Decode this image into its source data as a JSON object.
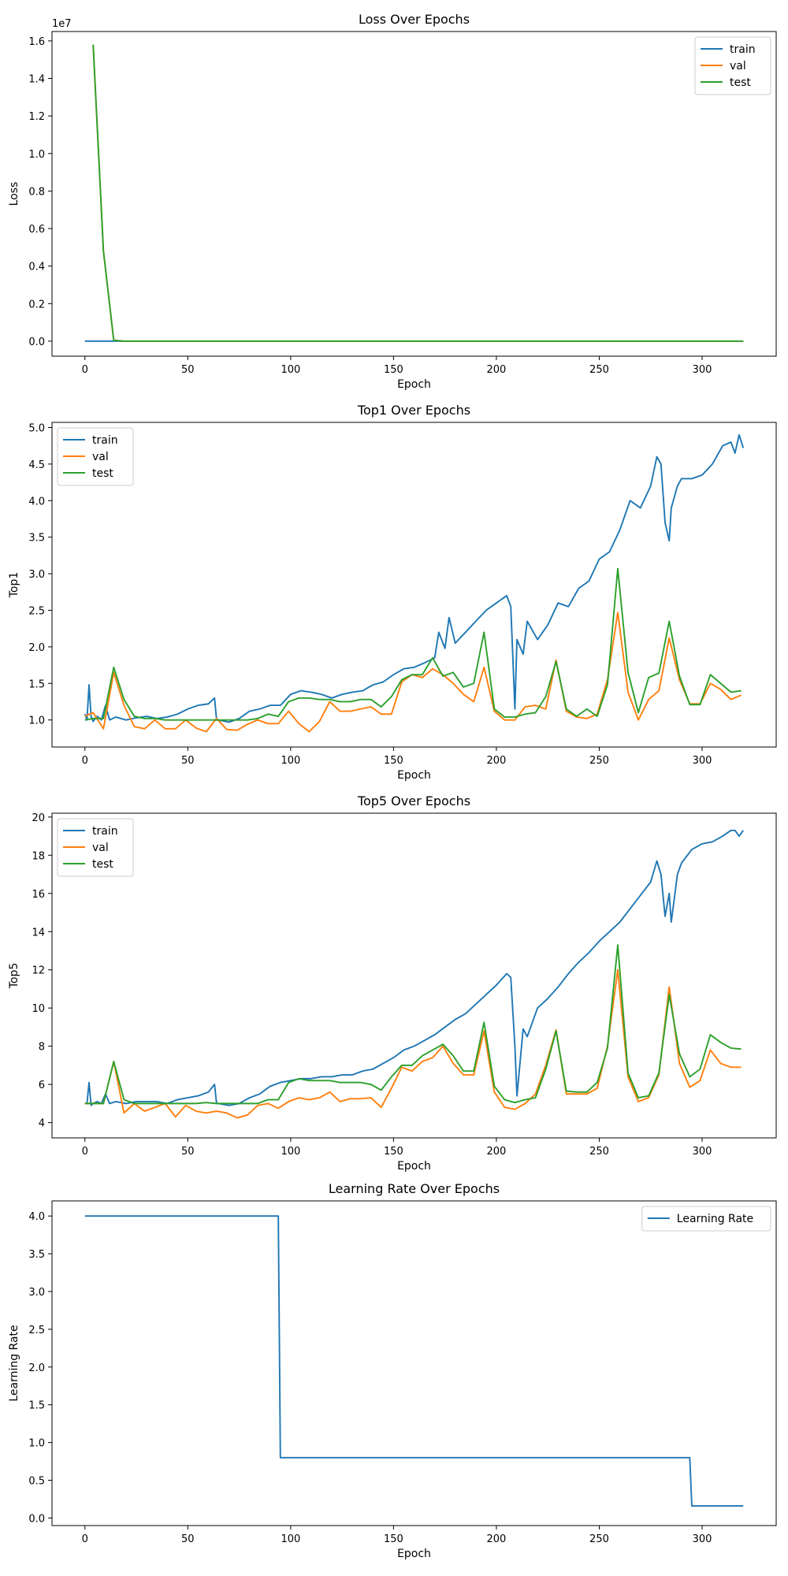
{
  "colors": {
    "train": "#1f77b4",
    "val": "#ff7f0e",
    "test": "#2ca02c"
  },
  "chart_data": [
    {
      "type": "line",
      "title": "Loss Over Epochs",
      "xlabel": "Epoch",
      "ylabel": "Loss",
      "offset_text": "1e7",
      "xlim": [
        -16,
        336
      ],
      "ylim": [
        -0.08,
        1.65
      ],
      "xticks": [
        "0",
        "50",
        "100",
        "150",
        "200",
        "250",
        "300"
      ],
      "yticks": [
        "0.0",
        "0.2",
        "0.4",
        "0.6",
        "0.8",
        "1.0",
        "1.2",
        "1.4",
        "1.6"
      ],
      "legend": "top-right",
      "series": [
        {
          "name": "train",
          "color": "#1f77b4",
          "x": [
            0,
            320
          ],
          "y": [
            0,
            0
          ]
        },
        {
          "name": "val",
          "color": "#ff7f0e",
          "x": [
            4,
            9,
            14,
            19,
            320
          ],
          "y": [
            1.58,
            0.48,
            0.005,
            0,
            0
          ]
        },
        {
          "name": "test",
          "color": "#2ca02c",
          "x": [
            4,
            9,
            14,
            19,
            320
          ],
          "y": [
            1.58,
            0.48,
            0.005,
            0,
            0
          ]
        }
      ]
    },
    {
      "type": "line",
      "title": "Top1 Over Epochs",
      "xlabel": "Epoch",
      "ylabel": "Top1",
      "xlim": [
        -16,
        336
      ],
      "ylim": [
        0.63,
        5.07
      ],
      "xticks": [
        "0",
        "50",
        "100",
        "150",
        "200",
        "250",
        "300"
      ],
      "yticks": [
        "1.0",
        "1.5",
        "2.0",
        "2.5",
        "3.0",
        "3.5",
        "4.0",
        "4.5",
        "5.0"
      ],
      "legend": "top-left",
      "series": [
        {
          "name": "train",
          "color": "#1f77b4",
          "x": [
            0,
            1,
            2,
            3,
            4,
            5,
            6,
            8,
            10,
            12,
            15,
            20,
            25,
            30,
            35,
            40,
            45,
            50,
            55,
            60,
            63,
            64,
            65,
            70,
            75,
            80,
            85,
            90,
            95,
            100,
            105,
            110,
            115,
            120,
            125,
            130,
            135,
            140,
            145,
            150,
            155,
            160,
            165,
            170,
            172,
            175,
            177,
            180,
            185,
            190,
            195,
            200,
            205,
            207,
            209,
            210,
            213,
            215,
            220,
            225,
            230,
            235,
            240,
            245,
            250,
            255,
            260,
            265,
            270,
            275,
            278,
            280,
            282,
            284,
            285,
            288,
            290,
            295,
            300,
            305,
            310,
            314,
            316,
            318,
            320
          ],
          "y": [
            1.08,
            1.0,
            1.48,
            1.05,
            0.98,
            1.02,
            1.05,
            1.0,
            1.2,
            1.0,
            1.04,
            1.0,
            1.03,
            1.05,
            1.02,
            1.04,
            1.08,
            1.15,
            1.2,
            1.22,
            1.3,
            1.0,
            1.0,
            0.97,
            1.02,
            1.12,
            1.15,
            1.2,
            1.2,
            1.35,
            1.4,
            1.38,
            1.35,
            1.3,
            1.35,
            1.38,
            1.4,
            1.48,
            1.52,
            1.62,
            1.7,
            1.72,
            1.78,
            1.85,
            2.2,
            1.98,
            2.4,
            2.05,
            2.2,
            2.35,
            2.5,
            2.6,
            2.7,
            2.55,
            1.15,
            2.1,
            1.9,
            2.35,
            2.1,
            2.3,
            2.6,
            2.55,
            2.8,
            2.9,
            3.2,
            3.3,
            3.6,
            4.0,
            3.9,
            4.2,
            4.6,
            4.5,
            3.7,
            3.45,
            3.9,
            4.2,
            4.3,
            4.3,
            4.35,
            4.5,
            4.75,
            4.8,
            4.65,
            4.9,
            4.72
          ]
        },
        {
          "name": "val",
          "color": "#ff7f0e",
          "x": [
            0,
            4,
            9,
            14,
            19,
            24,
            29,
            34,
            39,
            44,
            49,
            54,
            59,
            64,
            69,
            74,
            79,
            84,
            89,
            94,
            99,
            104,
            109,
            114,
            119,
            124,
            129,
            134,
            139,
            144,
            149,
            154,
            159,
            164,
            169,
            174,
            179,
            184,
            189,
            194,
            199,
            204,
            209,
            214,
            219,
            224,
            229,
            234,
            239,
            244,
            249,
            254,
            259,
            264,
            269,
            274,
            279,
            284,
            289,
            294,
            299,
            304,
            309,
            314,
            319
          ],
          "y": [
            1.05,
            1.1,
            0.88,
            1.65,
            1.2,
            0.91,
            0.88,
            1.0,
            0.88,
            0.88,
            1.0,
            0.89,
            0.84,
            1.02,
            0.87,
            0.86,
            0.94,
            1.0,
            0.95,
            0.95,
            1.12,
            0.95,
            0.84,
            0.98,
            1.25,
            1.12,
            1.12,
            1.15,
            1.18,
            1.08,
            1.08,
            1.52,
            1.62,
            1.58,
            1.7,
            1.62,
            1.5,
            1.35,
            1.25,
            1.72,
            1.12,
            1.0,
            1.0,
            1.18,
            1.2,
            1.15,
            1.82,
            1.12,
            1.04,
            1.02,
            1.08,
            1.55,
            2.47,
            1.38,
            1.0,
            1.28,
            1.4,
            2.12,
            1.55,
            1.22,
            1.22,
            1.5,
            1.42,
            1.28,
            1.34
          ]
        },
        {
          "name": "test",
          "color": "#2ca02c",
          "x": [
            0,
            4,
            9,
            14,
            19,
            24,
            29,
            34,
            39,
            44,
            49,
            54,
            59,
            64,
            69,
            74,
            79,
            84,
            89,
            94,
            99,
            104,
            109,
            114,
            119,
            124,
            129,
            134,
            139,
            144,
            149,
            154,
            159,
            164,
            169,
            174,
            179,
            184,
            189,
            194,
            199,
            204,
            209,
            214,
            219,
            224,
            229,
            234,
            239,
            244,
            249,
            254,
            259,
            264,
            269,
            274,
            279,
            284,
            289,
            294,
            299,
            304,
            309,
            314,
            319
          ],
          "y": [
            1.0,
            1.02,
            1.02,
            1.72,
            1.28,
            1.05,
            1.02,
            1.02,
            1.0,
            1.0,
            1.0,
            1.0,
            1.0,
            1.0,
            1.0,
            1.0,
            1.0,
            1.02,
            1.08,
            1.05,
            1.25,
            1.3,
            1.3,
            1.28,
            1.28,
            1.25,
            1.25,
            1.28,
            1.28,
            1.18,
            1.32,
            1.55,
            1.62,
            1.62,
            1.85,
            1.6,
            1.65,
            1.45,
            1.5,
            2.2,
            1.15,
            1.04,
            1.04,
            1.08,
            1.1,
            1.32,
            1.8,
            1.15,
            1.05,
            1.15,
            1.05,
            1.48,
            3.07,
            1.65,
            1.1,
            1.58,
            1.64,
            2.35,
            1.6,
            1.21,
            1.21,
            1.62,
            1.5,
            1.38,
            1.4
          ]
        }
      ]
    },
    {
      "type": "line",
      "title": "Top5 Over Epochs",
      "xlabel": "Epoch",
      "ylabel": "Top5",
      "xlim": [
        -16,
        336
      ],
      "ylim": [
        3.2,
        20.2
      ],
      "xticks": [
        "0",
        "50",
        "100",
        "150",
        "200",
        "250",
        "300"
      ],
      "yticks": [
        "4",
        "6",
        "8",
        "10",
        "12",
        "14",
        "16",
        "18",
        "20"
      ],
      "legend": "top-left",
      "series": [
        {
          "name": "train",
          "color": "#1f77b4",
          "x": [
            0,
            1,
            2,
            3,
            4,
            6,
            8,
            10,
            12,
            15,
            20,
            25,
            30,
            35,
            40,
            45,
            50,
            55,
            60,
            63,
            64,
            65,
            70,
            75,
            80,
            85,
            90,
            95,
            100,
            105,
            110,
            115,
            120,
            125,
            130,
            135,
            140,
            145,
            150,
            155,
            160,
            165,
            170,
            175,
            180,
            185,
            190,
            195,
            200,
            205,
            207,
            209,
            210,
            213,
            215,
            220,
            225,
            230,
            235,
            240,
            245,
            250,
            255,
            260,
            265,
            270,
            275,
            278,
            280,
            282,
            284,
            285,
            288,
            290,
            295,
            300,
            305,
            310,
            314,
            316,
            318,
            320
          ],
          "y": [
            5.0,
            5.0,
            6.1,
            4.9,
            5.0,
            5.1,
            5.0,
            5.5,
            5.0,
            5.1,
            5.0,
            5.1,
            5.1,
            5.1,
            5.0,
            5.2,
            5.3,
            5.4,
            5.6,
            6.0,
            5.0,
            5.0,
            4.9,
            5.0,
            5.3,
            5.5,
            5.9,
            6.1,
            6.2,
            6.3,
            6.3,
            6.4,
            6.4,
            6.5,
            6.5,
            6.7,
            6.8,
            7.1,
            7.4,
            7.8,
            8.0,
            8.3,
            8.6,
            9.0,
            9.4,
            9.7,
            10.2,
            10.7,
            11.2,
            11.8,
            11.6,
            8.0,
            5.4,
            8.9,
            8.5,
            10.0,
            10.5,
            11.1,
            11.8,
            12.4,
            12.9,
            13.5,
            14.0,
            14.5,
            15.2,
            15.9,
            16.6,
            17.7,
            17.0,
            14.8,
            16.0,
            14.5,
            17.0,
            17.6,
            18.3,
            18.6,
            18.7,
            19.0,
            19.3,
            19.3,
            19.0,
            19.3
          ]
        },
        {
          "name": "val",
          "color": "#ff7f0e",
          "x": [
            0,
            4,
            9,
            14,
            19,
            24,
            29,
            34,
            39,
            44,
            49,
            54,
            59,
            64,
            69,
            74,
            79,
            84,
            89,
            94,
            99,
            104,
            109,
            114,
            119,
            124,
            129,
            134,
            139,
            144,
            149,
            154,
            159,
            164,
            169,
            174,
            179,
            184,
            189,
            194,
            199,
            204,
            209,
            214,
            219,
            224,
            229,
            234,
            239,
            244,
            249,
            254,
            259,
            264,
            269,
            274,
            279,
            284,
            289,
            294,
            299,
            304,
            309,
            314,
            319
          ],
          "y": [
            5.0,
            5.0,
            5.0,
            7.2,
            4.5,
            5.0,
            4.6,
            4.8,
            5.0,
            4.3,
            4.9,
            4.6,
            4.5,
            4.6,
            4.5,
            4.25,
            4.4,
            4.9,
            5.0,
            4.75,
            5.1,
            5.3,
            5.2,
            5.3,
            5.6,
            5.1,
            5.25,
            5.25,
            5.3,
            4.8,
            5.8,
            6.9,
            6.7,
            7.2,
            7.4,
            8.0,
            7.1,
            6.5,
            6.5,
            8.8,
            5.6,
            4.8,
            4.7,
            5.0,
            5.5,
            7.0,
            8.85,
            5.5,
            5.5,
            5.5,
            5.8,
            8.0,
            12.0,
            6.4,
            5.1,
            5.3,
            6.5,
            11.1,
            7.1,
            5.85,
            6.2,
            7.8,
            7.1,
            6.9,
            6.9
          ]
        },
        {
          "name": "test",
          "color": "#2ca02c",
          "x": [
            0,
            4,
            9,
            14,
            19,
            24,
            29,
            34,
            39,
            44,
            49,
            54,
            59,
            64,
            69,
            74,
            79,
            84,
            89,
            94,
            99,
            104,
            109,
            114,
            119,
            124,
            129,
            134,
            139,
            144,
            149,
            154,
            159,
            164,
            169,
            174,
            179,
            184,
            189,
            194,
            199,
            204,
            209,
            214,
            219,
            224,
            229,
            234,
            239,
            244,
            249,
            254,
            259,
            264,
            269,
            274,
            279,
            284,
            289,
            294,
            299,
            304,
            309,
            314,
            319
          ],
          "y": [
            5.0,
            5.0,
            5.0,
            7.2,
            5.2,
            5.0,
            5.0,
            5.0,
            5.0,
            5.0,
            5.0,
            5.0,
            5.05,
            5.0,
            5.0,
            5.0,
            5.0,
            5.0,
            5.2,
            5.2,
            6.1,
            6.3,
            6.2,
            6.2,
            6.2,
            6.1,
            6.1,
            6.1,
            6.0,
            5.7,
            6.4,
            7.0,
            7.0,
            7.5,
            7.8,
            8.1,
            7.5,
            6.7,
            6.7,
            9.25,
            5.9,
            5.2,
            5.05,
            5.2,
            5.3,
            6.8,
            8.8,
            5.65,
            5.6,
            5.6,
            6.1,
            7.9,
            13.3,
            6.6,
            5.3,
            5.4,
            6.6,
            10.7,
            7.6,
            6.4,
            6.8,
            8.6,
            8.2,
            7.9,
            7.85
          ]
        }
      ]
    },
    {
      "type": "line",
      "title": "Learning Rate Over Epochs",
      "xlabel": "Epoch",
      "ylabel": "Learning Rate",
      "xlim": [
        -16,
        336
      ],
      "ylim": [
        -0.1,
        4.2
      ],
      "xticks": [
        "0",
        "50",
        "100",
        "150",
        "200",
        "250",
        "300"
      ],
      "yticks": [
        "0.0",
        "0.5",
        "1.0",
        "1.5",
        "2.0",
        "2.5",
        "3.0",
        "3.5",
        "4.0"
      ],
      "legend": "top-right",
      "series": [
        {
          "name": "Learning Rate",
          "color": "#1f77b4",
          "x": [
            0,
            94,
            95,
            294,
            295,
            320
          ],
          "y": [
            4.0,
            4.0,
            0.8,
            0.8,
            0.16,
            0.16
          ]
        }
      ]
    }
  ]
}
